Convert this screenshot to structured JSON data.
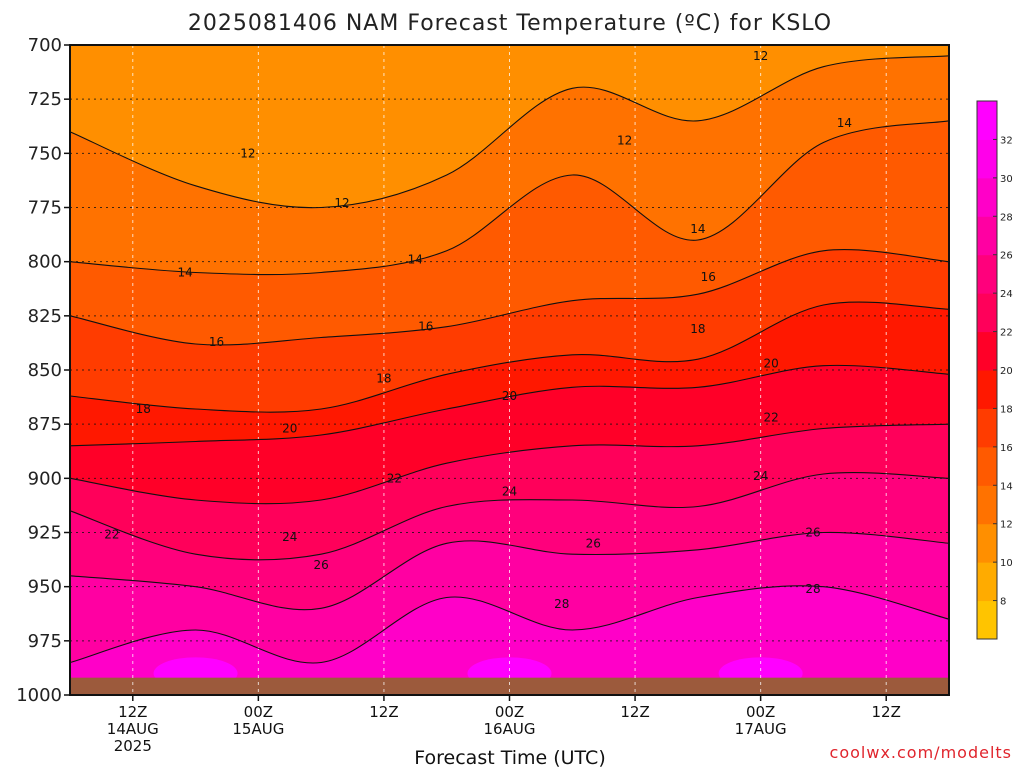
{
  "title": "2025081406 NAM Forecast Temperature (ºC) for KSLO",
  "credit": "coolwx.com/modelts",
  "chart_data": {
    "type": "heatmap",
    "title": "2025081406 NAM Forecast Temperature (ºC) for KSLO",
    "xlabel": "Forecast Time (UTC)",
    "ylabel": "",
    "y_axis": {
      "ticks": [
        700,
        725,
        750,
        775,
        800,
        825,
        850,
        875,
        900,
        925,
        950,
        975,
        1000
      ],
      "ylim": [
        1000,
        700
      ],
      "grid": true
    },
    "x_axis": {
      "xlim_forecast_hours": [
        0,
        84
      ],
      "ticks": [
        {
          "hour": 6,
          "lines": [
            "12Z",
            "14AUG",
            "2025"
          ]
        },
        {
          "hour": 18,
          "lines": [
            "00Z",
            "15AUG"
          ]
        },
        {
          "hour": 30,
          "lines": [
            "12Z"
          ]
        },
        {
          "hour": 42,
          "lines": [
            "00Z",
            "16AUG"
          ]
        },
        {
          "hour": 54,
          "lines": [
            "12Z"
          ]
        },
        {
          "hour": 66,
          "lines": [
            "00Z",
            "17AUG"
          ]
        },
        {
          "hour": 78,
          "lines": [
            "12Z"
          ]
        }
      ],
      "grid": true
    },
    "colorbar": {
      "levels": [
        6,
        8,
        10,
        12,
        14,
        16,
        18,
        20,
        22,
        24,
        26,
        28,
        30,
        32,
        34
      ],
      "labels": [
        8,
        10,
        12,
        14,
        16,
        18,
        20,
        22,
        24,
        26,
        28,
        30,
        32
      ],
      "colors": [
        "#ffc400",
        "#ffab00",
        "#ff8f00",
        "#ff7200",
        "#ff5a00",
        "#ff3c00",
        "#ff1800",
        "#ff0028",
        "#ff005a",
        "#ff007c",
        "#ff00a2",
        "#ff00c8",
        "#ff00ea",
        "#ff00ff"
      ]
    },
    "contours": [
      {
        "label": "12",
        "hours": [
          0,
          12,
          24,
          36,
          48,
          60,
          72,
          84
        ],
        "pressure": [
          740,
          765,
          775,
          760,
          720,
          735,
          710,
          705
        ]
      },
      {
        "label": "14",
        "hours": [
          0,
          12,
          24,
          36,
          48,
          60,
          72,
          84
        ],
        "pressure": [
          800,
          805,
          805,
          795,
          760,
          790,
          745,
          735
        ]
      },
      {
        "label": "16",
        "hours": [
          0,
          12,
          24,
          36,
          48,
          60,
          72,
          84
        ],
        "pressure": [
          825,
          838,
          835,
          830,
          818,
          815,
          795,
          800
        ]
      },
      {
        "label": "18",
        "hours": [
          0,
          12,
          24,
          36,
          48,
          60,
          72,
          84
        ],
        "pressure": [
          862,
          868,
          868,
          852,
          843,
          845,
          820,
          822
        ]
      },
      {
        "label": "20",
        "hours": [
          0,
          12,
          24,
          36,
          48,
          60,
          72,
          84
        ],
        "pressure": [
          885,
          883,
          880,
          868,
          858,
          858,
          848,
          852
        ]
      },
      {
        "label": "22",
        "hours": [
          0,
          12,
          24,
          36,
          48,
          60,
          72,
          84
        ],
        "pressure": [
          900,
          910,
          910,
          893,
          885,
          885,
          877,
          875
        ]
      },
      {
        "label": "24",
        "hours": [
          0,
          12,
          24,
          36,
          48,
          60,
          72,
          84
        ],
        "pressure": [
          915,
          935,
          935,
          913,
          910,
          913,
          898,
          900
        ]
      },
      {
        "label": "26",
        "hours": [
          0,
          12,
          24,
          36,
          48,
          60,
          72,
          84
        ],
        "pressure": [
          945,
          950,
          960,
          930,
          935,
          933,
          925,
          930
        ]
      },
      {
        "label": "28",
        "hours": [
          0,
          12,
          24,
          36,
          48,
          60,
          72,
          84
        ],
        "pressure": [
          985,
          970,
          985,
          955,
          970,
          955,
          950,
          965
        ]
      }
    ],
    "contour_labels": [
      {
        "text": "12",
        "hour": 17,
        "pressure": 750
      },
      {
        "text": "12",
        "hour": 26,
        "pressure": 773
      },
      {
        "text": "12",
        "hour": 53,
        "pressure": 744
      },
      {
        "text": "12",
        "hour": 66,
        "pressure": 705
      },
      {
        "text": "14",
        "hour": 11,
        "pressure": 805
      },
      {
        "text": "14",
        "hour": 33,
        "pressure": 799
      },
      {
        "text": "14",
        "hour": 60,
        "pressure": 785
      },
      {
        "text": "14",
        "hour": 74,
        "pressure": 736
      },
      {
        "text": "16",
        "hour": 14,
        "pressure": 837
      },
      {
        "text": "16",
        "hour": 34,
        "pressure": 830
      },
      {
        "text": "16",
        "hour": 61,
        "pressure": 807
      },
      {
        "text": "18",
        "hour": 7,
        "pressure": 868
      },
      {
        "text": "18",
        "hour": 30,
        "pressure": 854
      },
      {
        "text": "18",
        "hour": 60,
        "pressure": 831
      },
      {
        "text": "20",
        "hour": 21,
        "pressure": 877
      },
      {
        "text": "20",
        "hour": 42,
        "pressure": 862
      },
      {
        "text": "20",
        "hour": 67,
        "pressure": 847
      },
      {
        "text": "22",
        "hour": 4,
        "pressure": 926
      },
      {
        "text": "22",
        "hour": 31,
        "pressure": 900
      },
      {
        "text": "22",
        "hour": 67,
        "pressure": 872
      },
      {
        "text": "24",
        "hour": 21,
        "pressure": 927
      },
      {
        "text": "24",
        "hour": 42,
        "pressure": 906
      },
      {
        "text": "24",
        "hour": 66,
        "pressure": 899
      },
      {
        "text": "26",
        "hour": 24,
        "pressure": 940
      },
      {
        "text": "26",
        "hour": 50,
        "pressure": 930
      },
      {
        "text": "26",
        "hour": 71,
        "pressure": 925
      },
      {
        "text": "28",
        "hour": 47,
        "pressure": 958
      },
      {
        "text": "28",
        "hour": 71,
        "pressure": 951
      }
    ],
    "surface_pressure_approx": 992
  }
}
